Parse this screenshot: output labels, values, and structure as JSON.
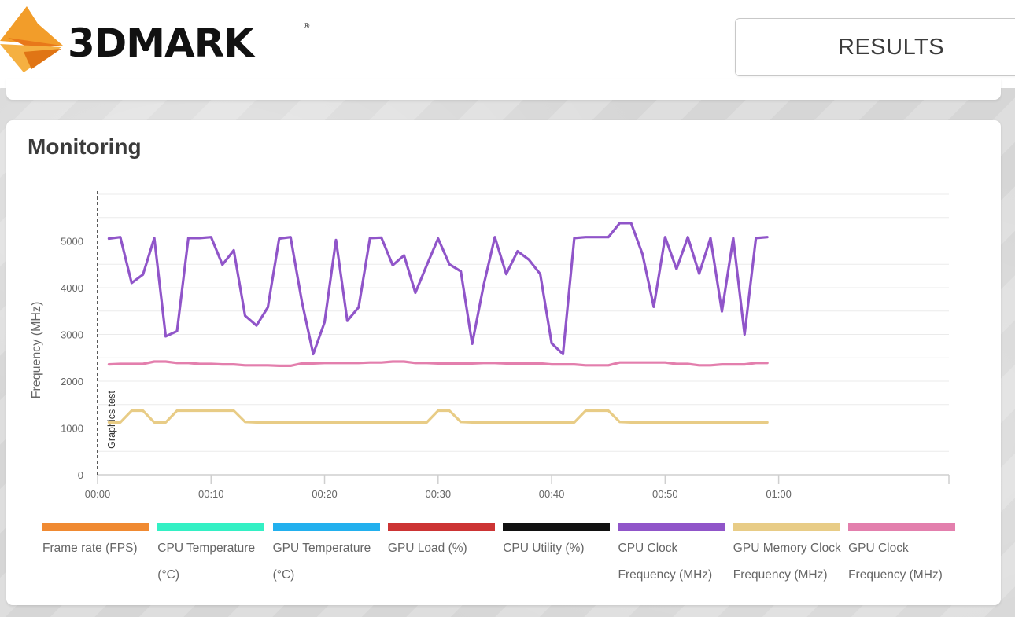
{
  "header": {
    "logo_text": "3DMARK",
    "logo_reg": "®",
    "results_label": "RESULTS",
    "accent": "#f08a1c"
  },
  "monitoring": {
    "title": "Monitoring"
  },
  "chart_data": {
    "type": "line",
    "title": "Monitoring",
    "xlabel": "",
    "ylabel": "Frequency (MHz)",
    "xlim": [
      0,
      75
    ],
    "ylim": [
      0,
      6000
    ],
    "yticks": [
      0,
      1000,
      2000,
      3000,
      4000,
      5000
    ],
    "xticks": [
      0,
      10,
      20,
      30,
      40,
      50,
      60
    ],
    "xtick_labels": [
      "00:00",
      "00:10",
      "00:20",
      "00:30",
      "00:40",
      "00:50",
      "01:00"
    ],
    "marker_label": "Graphics test",
    "marker_x": 0,
    "x": [
      1,
      2,
      3,
      4,
      5,
      6,
      7,
      8,
      9,
      10,
      11,
      12,
      13,
      14,
      15,
      16,
      17,
      18,
      19,
      20,
      21,
      22,
      23,
      24,
      25,
      26,
      27,
      28,
      29,
      30,
      31,
      32,
      33,
      34,
      35,
      36,
      37,
      38,
      39,
      40,
      41,
      42,
      43,
      44,
      45,
      46,
      47,
      48,
      49,
      50,
      51,
      52,
      53,
      54,
      55,
      56,
      57,
      58,
      59
    ],
    "series": [
      {
        "name": "CPU Clock Frequency (MHz)",
        "color": "#9055c9",
        "values": [
          5050,
          5080,
          4100,
          4280,
          5060,
          2960,
          3070,
          5060,
          5060,
          5080,
          4490,
          4800,
          3400,
          3190,
          3580,
          5050,
          5080,
          3700,
          2580,
          3260,
          5020,
          3290,
          3580,
          5060,
          5070,
          4480,
          4690,
          3890,
          4480,
          5050,
          4500,
          4350,
          2800,
          4040,
          5080,
          4290,
          4780,
          4600,
          4290,
          2810,
          2580,
          5060,
          5080,
          5080,
          5080,
          5380,
          5380,
          4720,
          3590,
          5080,
          4400,
          5080,
          4300,
          5060,
          3490,
          5060,
          3000,
          5060,
          5080
        ]
      },
      {
        "name": "GPU Clock Frequency (MHz)",
        "color": "#e37fad",
        "values": [
          2360,
          2370,
          2370,
          2370,
          2420,
          2420,
          2390,
          2390,
          2370,
          2370,
          2360,
          2360,
          2340,
          2340,
          2340,
          2330,
          2330,
          2380,
          2380,
          2390,
          2390,
          2390,
          2390,
          2400,
          2400,
          2420,
          2420,
          2390,
          2390,
          2380,
          2380,
          2380,
          2380,
          2390,
          2390,
          2380,
          2380,
          2380,
          2380,
          2360,
          2360,
          2360,
          2340,
          2340,
          2340,
          2400,
          2400,
          2400,
          2400,
          2400,
          2370,
          2370,
          2340,
          2340,
          2360,
          2360,
          2360,
          2390,
          2390
        ]
      },
      {
        "name": "GPU Memory Clock Frequency (MHz)",
        "color": "#e8cc86",
        "values": [
          1120,
          1120,
          1370,
          1370,
          1120,
          1120,
          1370,
          1370,
          1370,
          1370,
          1370,
          1370,
          1130,
          1120,
          1120,
          1120,
          1120,
          1120,
          1120,
          1120,
          1120,
          1120,
          1120,
          1120,
          1120,
          1120,
          1120,
          1120,
          1120,
          1370,
          1370,
          1130,
          1120,
          1120,
          1120,
          1120,
          1120,
          1120,
          1120,
          1120,
          1120,
          1120,
          1370,
          1370,
          1370,
          1130,
          1120,
          1120,
          1120,
          1120,
          1120,
          1120,
          1120,
          1120,
          1120,
          1120,
          1120,
          1120,
          1120
        ]
      }
    ],
    "legend": [
      {
        "label": "Frame rate (FPS)",
        "color": "#f08a32"
      },
      {
        "label": "CPU Temperature (°C)",
        "color": "#33f0c4"
      },
      {
        "label": "GPU Temperature (°C)",
        "color": "#22b0ee"
      },
      {
        "label": "GPU Load (%)",
        "color": "#cc3434"
      },
      {
        "label": "CPU Utility (%)",
        "color": "#111111"
      },
      {
        "label": "CPU Clock Frequency (MHz)",
        "color": "#9055c9"
      },
      {
        "label": "GPU Memory Clock Frequency (MHz)",
        "color": "#e8cc86"
      },
      {
        "label": "GPU Clock Frequency (MHz)",
        "color": "#e37fad"
      }
    ]
  }
}
